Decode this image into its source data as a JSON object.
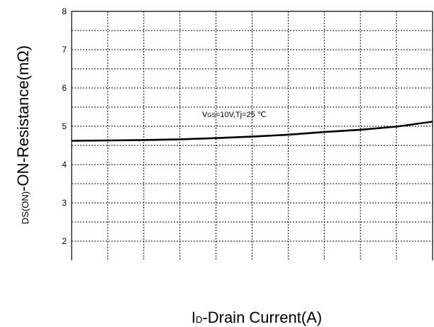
{
  "chart_data": {
    "type": "line",
    "title": "",
    "xlabel": {
      "prefix": "I",
      "sub": "D",
      "rest": "-Drain Current(A)"
    },
    "ylabel": {
      "sub": "DS(ON)",
      "rest": "-ON-Resistance(mΩ)"
    },
    "ylim": [
      1.5,
      8
    ],
    "yticks": [
      "2",
      "3",
      "4",
      "5",
      "6",
      "7",
      "8"
    ],
    "xlim": [
      0,
      10
    ],
    "x_gridlines": 10,
    "y_gridlines": 13,
    "grid": true,
    "annotation": {
      "prefix": "V",
      "sub": "GS",
      "rest": "=10V,Tj=25 ℃"
    },
    "series": [
      {
        "x": [
          0,
          1,
          2,
          3,
          4,
          5,
          6,
          7,
          8,
          9,
          10
        ],
        "y": [
          4.62,
          4.63,
          4.64,
          4.66,
          4.69,
          4.73,
          4.78,
          4.85,
          4.91,
          4.99,
          5.12
        ]
      }
    ]
  }
}
